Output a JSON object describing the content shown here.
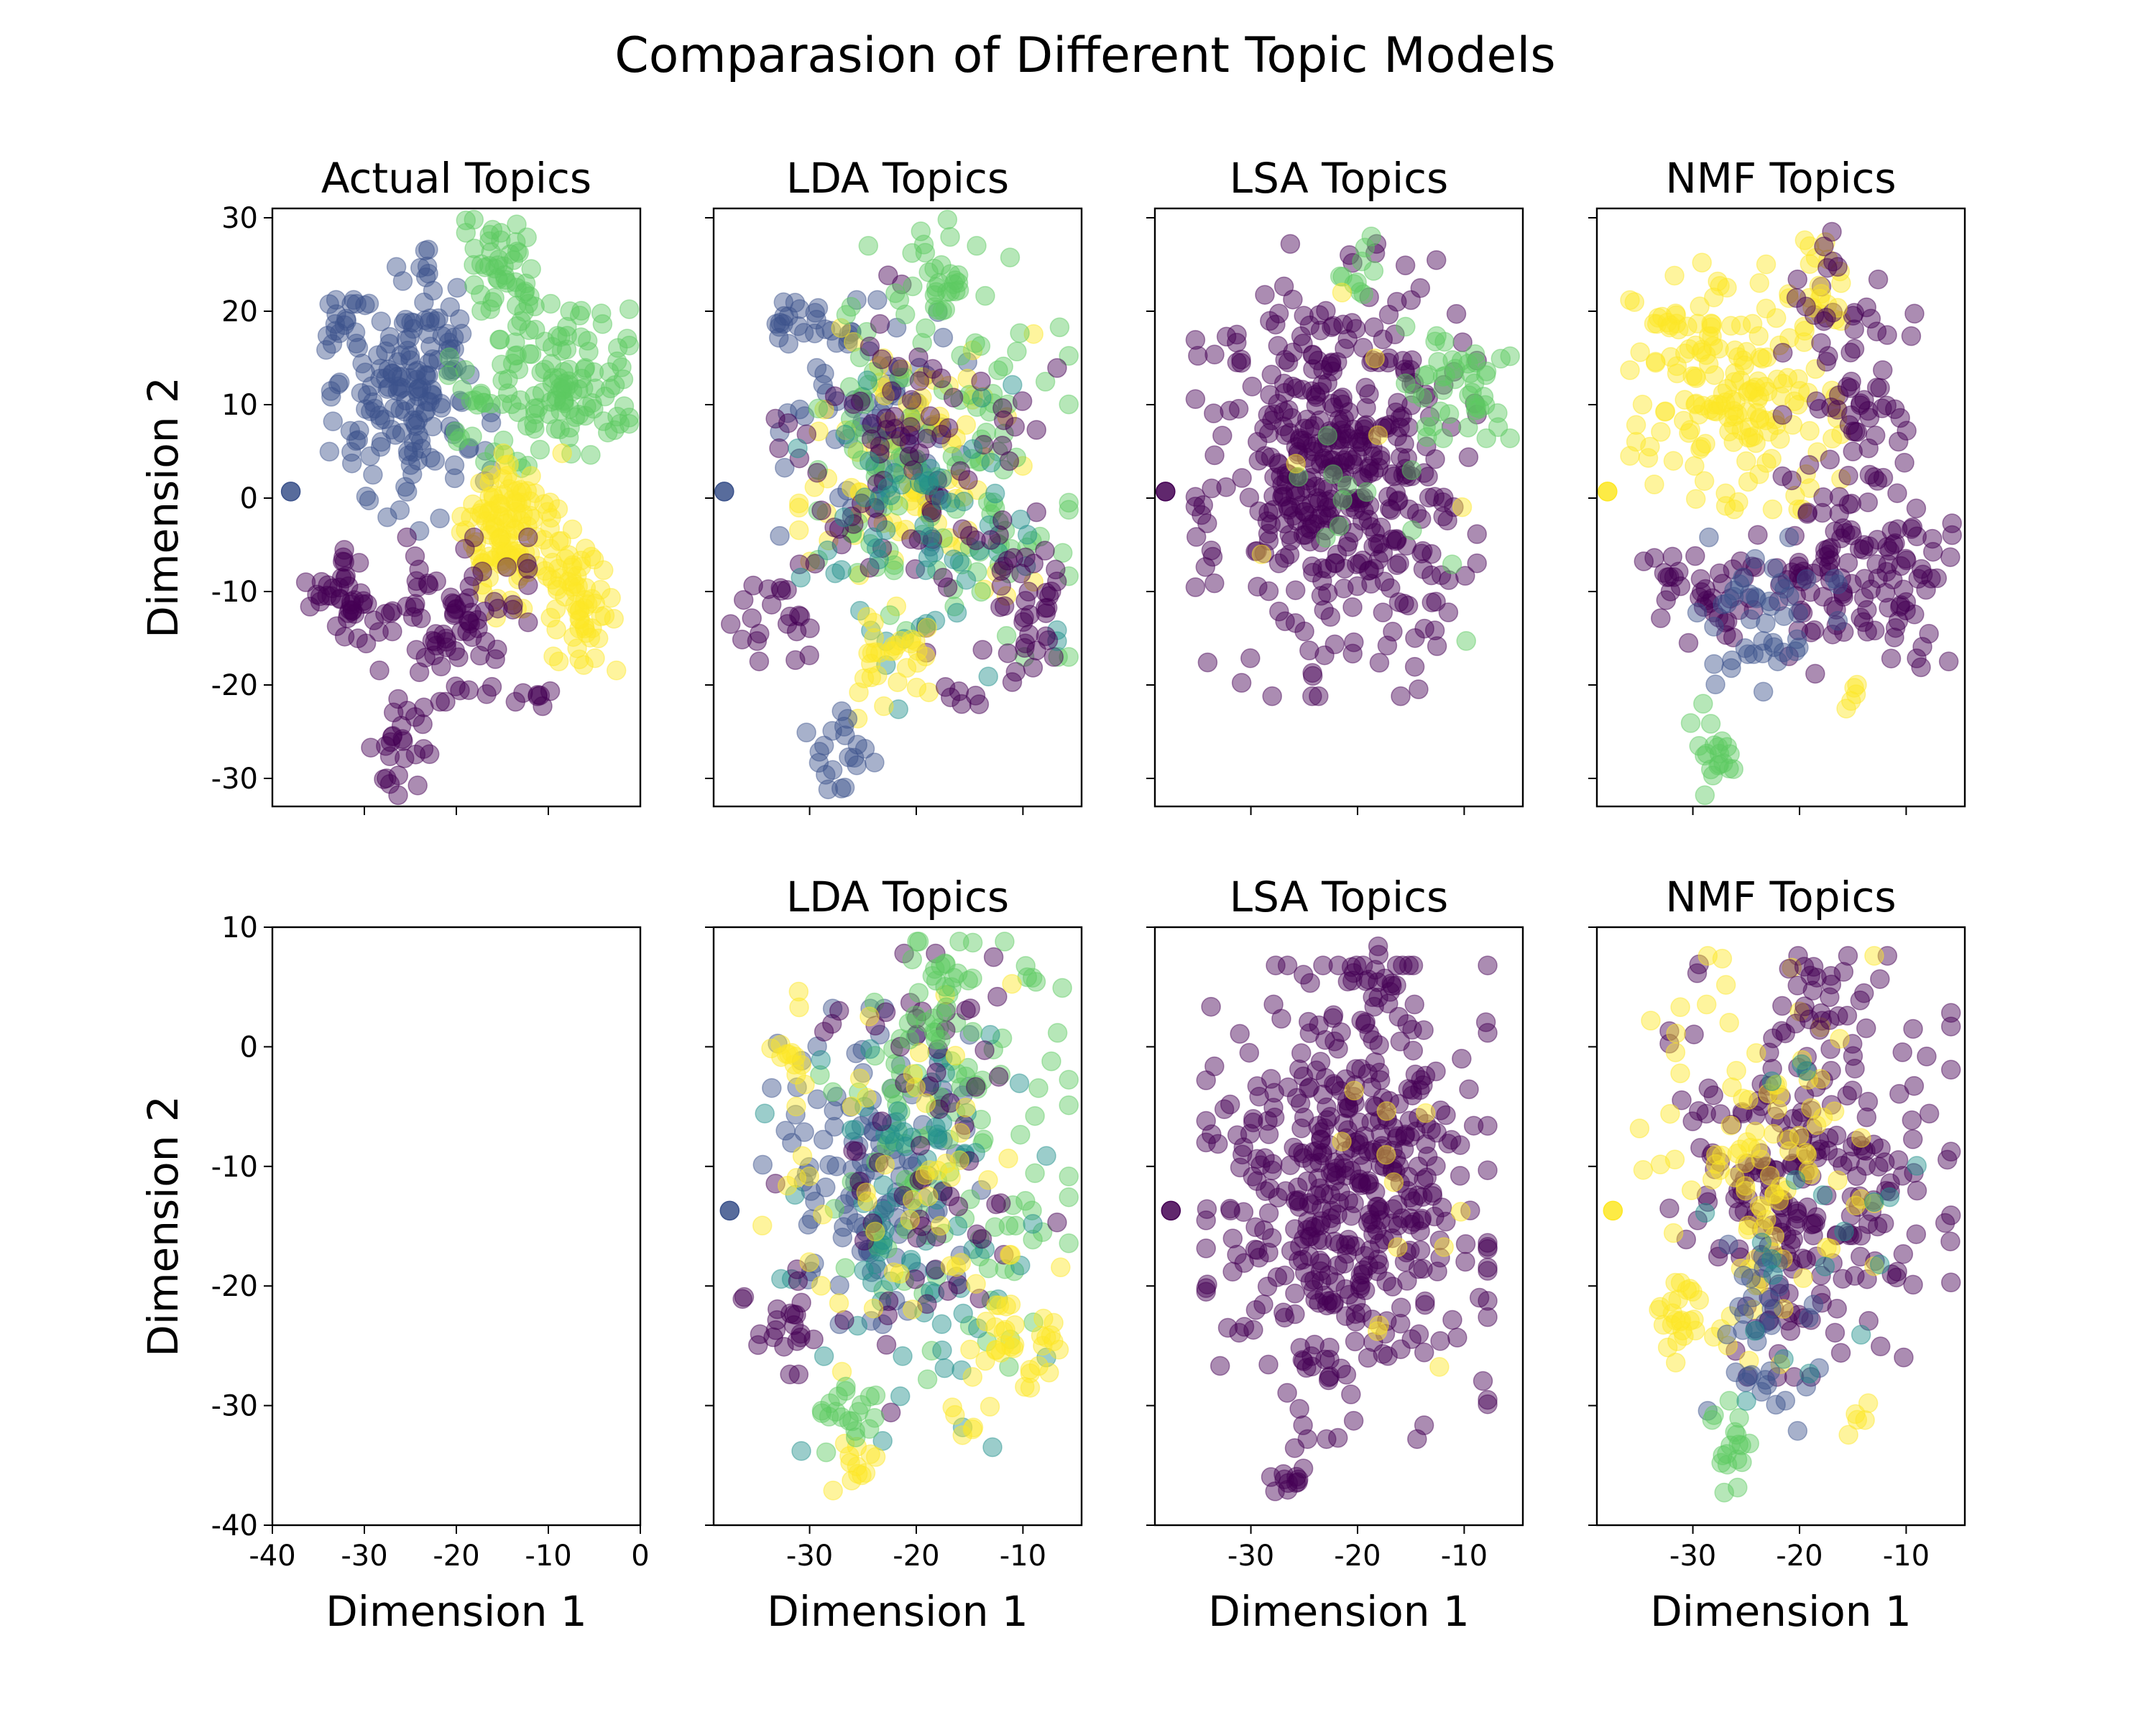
{
  "figure": {
    "title": "Comparasion of Different Topic Models"
  },
  "colors": {
    "topic0": "#440154",
    "topic1": "#3b528b",
    "topic2": "#21918c",
    "topic3": "#5ec962",
    "topic4": "#fde725"
  },
  "chart_data": [
    {
      "id": "p00",
      "type": "scatter",
      "title": "Actual Topics",
      "xlabel": "",
      "ylabel": "Dimension 2",
      "xlim": [
        -40,
        0
      ],
      "ylim": [
        -33,
        31
      ],
      "xticks": [
        -30,
        -20,
        -10
      ],
      "xtick_labels": [
        "",
        "",
        ""
      ],
      "yticks": [
        30,
        20,
        10,
        0,
        -10,
        -20,
        -30
      ],
      "ytick_labels": [
        "30",
        "20",
        "10",
        "0",
        "-10",
        "-20",
        "-30"
      ],
      "alpha": 0.45,
      "clusters": [
        {
          "c": "topic1",
          "x": -25,
          "y": 9,
          "sx": 4,
          "sy": 6,
          "n": 140
        },
        {
          "c": "topic1",
          "x": -32,
          "y": 19,
          "sx": 1.2,
          "sy": 1.5,
          "n": 18
        },
        {
          "c": "topic1",
          "x": -23,
          "y": 20,
          "sx": 2.5,
          "sy": 3,
          "n": 25
        },
        {
          "c": "topic3",
          "x": -15,
          "y": 24,
          "sx": 1.8,
          "sy": 3,
          "n": 45
        },
        {
          "c": "topic3",
          "x": -7,
          "y": 12,
          "sx": 3,
          "sy": 4,
          "n": 80
        },
        {
          "c": "topic3",
          "x": -15,
          "y": 12,
          "sx": 4,
          "sy": 4,
          "n": 55
        },
        {
          "c": "topic4",
          "x": -14,
          "y": -4,
          "sx": 2.5,
          "sy": 4,
          "n": 120
        },
        {
          "c": "topic4",
          "x": -7,
          "y": -11,
          "sx": 2,
          "sy": 4,
          "n": 60
        },
        {
          "c": "topic0",
          "x": -32,
          "y": -10,
          "sx": 2,
          "sy": 2.5,
          "n": 40
        },
        {
          "c": "topic0",
          "x": -21,
          "y": -13,
          "sx": 4,
          "sy": 4,
          "n": 80
        },
        {
          "c": "topic0",
          "x": -26,
          "y": -27,
          "sx": 1.5,
          "sy": 2.5,
          "n": 25
        },
        {
          "c": "topic0",
          "x": -12,
          "y": -21,
          "sx": 1,
          "sy": 1,
          "n": 6
        }
      ],
      "points": [
        {
          "c": "topic1",
          "x": -38,
          "y": 0.7
        }
      ]
    },
    {
      "id": "p01",
      "type": "scatter",
      "title": "LDA Topics",
      "xlabel": "",
      "ylabel": "",
      "xlim": [
        -39,
        -4.5
      ],
      "ylim": [
        -33,
        31
      ],
      "xticks": [
        -30,
        -20,
        -10
      ],
      "xtick_labels": [
        "",
        "",
        ""
      ],
      "yticks": [
        30,
        20,
        10,
        0,
        -10,
        -20,
        -30
      ],
      "ytick_labels": [
        "",
        "",
        "",
        "",
        "",
        "",
        ""
      ],
      "alpha": 0.45,
      "clusters": [
        {
          "c": "topic1",
          "x": -24,
          "y": 8,
          "sx": 4,
          "sy": 6,
          "n": 80
        },
        {
          "c": "topic4",
          "x": -20,
          "y": 4,
          "sx": 5,
          "sy": 8,
          "n": 90
        },
        {
          "c": "topic3",
          "x": -16,
          "y": 5,
          "sx": 6,
          "sy": 10,
          "n": 120
        },
        {
          "c": "topic0",
          "x": -20,
          "y": 5,
          "sx": 6,
          "sy": 10,
          "n": 90
        },
        {
          "c": "topic2",
          "x": -20,
          "y": -5,
          "sx": 6,
          "sy": 8,
          "n": 60
        },
        {
          "c": "topic3",
          "x": -18,
          "y": 24,
          "sx": 1.8,
          "sy": 3,
          "n": 30
        },
        {
          "c": "topic1",
          "x": -32,
          "y": 19,
          "sx": 1.2,
          "sy": 1.5,
          "n": 15
        },
        {
          "c": "topic4",
          "x": -23,
          "y": -17,
          "sx": 2,
          "sy": 3,
          "n": 30
        },
        {
          "c": "topic0",
          "x": -10,
          "y": -11,
          "sx": 2,
          "sy": 4,
          "n": 35
        },
        {
          "c": "topic0",
          "x": -33,
          "y": -12,
          "sx": 2,
          "sy": 2.5,
          "n": 20
        },
        {
          "c": "topic1",
          "x": -27,
          "y": -27,
          "sx": 1.5,
          "sy": 2.5,
          "n": 20
        },
        {
          "c": "topic0",
          "x": -16,
          "y": -21,
          "sx": 1,
          "sy": 1,
          "n": 6
        }
      ],
      "points": [
        {
          "c": "topic1",
          "x": -38,
          "y": 0.7
        }
      ]
    },
    {
      "id": "p02",
      "type": "scatter",
      "title": "LSA Topics",
      "xlabel": "",
      "ylabel": "",
      "xlim": [
        -39,
        -4.5
      ],
      "ylim": [
        -33,
        31
      ],
      "xticks": [
        -30,
        -20,
        -10
      ],
      "xtick_labels": [
        "",
        "",
        ""
      ],
      "yticks": [
        30,
        20,
        10,
        0,
        -10,
        -20,
        -30
      ],
      "ytick_labels": [
        "",
        "",
        "",
        "",
        "",
        "",
        ""
      ],
      "alpha": 0.45,
      "clusters": [
        {
          "c": "topic0",
          "x": -22,
          "y": 3,
          "sx": 6,
          "sy": 11,
          "n": 430
        },
        {
          "c": "topic3",
          "x": -10,
          "y": 13,
          "sx": 2.5,
          "sy": 3,
          "n": 45
        },
        {
          "c": "topic3",
          "x": -19,
          "y": 24,
          "sx": 1.2,
          "sy": 2,
          "n": 10
        },
        {
          "c": "topic3",
          "x": -18,
          "y": -3,
          "sx": 4,
          "sy": 6,
          "n": 12
        },
        {
          "c": "topic4",
          "x": -18,
          "y": 0,
          "sx": 5,
          "sy": 10,
          "n": 6
        }
      ],
      "points": [
        {
          "c": "topic0",
          "x": -38,
          "y": 0.7
        }
      ]
    },
    {
      "id": "p03",
      "type": "scatter",
      "title": "NMF Topics",
      "xlabel": "",
      "ylabel": "",
      "xlim": [
        -39,
        -4.5
      ],
      "ylim": [
        -33,
        31
      ],
      "xticks": [
        -30,
        -20,
        -10
      ],
      "xtick_labels": [
        "",
        "",
        ""
      ],
      "yticks": [
        30,
        20,
        10,
        0,
        -10,
        -20,
        -30
      ],
      "ytick_labels": [
        "",
        "",
        "",
        "",
        "",
        "",
        ""
      ],
      "alpha": 0.45,
      "clusters": [
        {
          "c": "topic4",
          "x": -26,
          "y": 12,
          "sx": 4.5,
          "sy": 6,
          "n": 170
        },
        {
          "c": "topic4",
          "x": -32,
          "y": 19,
          "sx": 1.2,
          "sy": 1.5,
          "n": 12
        },
        {
          "c": "topic0",
          "x": -15,
          "y": 8,
          "sx": 3,
          "sy": 7,
          "n": 70
        },
        {
          "c": "topic0",
          "x": -11,
          "y": -8,
          "sx": 3,
          "sy": 5,
          "n": 60
        },
        {
          "c": "topic0",
          "x": -28,
          "y": -10,
          "sx": 3,
          "sy": 2.5,
          "n": 40
        },
        {
          "c": "topic0",
          "x": -18,
          "y": -10,
          "sx": 3,
          "sy": 4,
          "n": 50
        },
        {
          "c": "topic1",
          "x": -23,
          "y": -13,
          "sx": 3,
          "sy": 4,
          "n": 45
        },
        {
          "c": "topic3",
          "x": -28,
          "y": -27,
          "sx": 1.2,
          "sy": 2.5,
          "n": 20
        },
        {
          "c": "topic4",
          "x": -18,
          "y": 24,
          "sx": 1.5,
          "sy": 2.5,
          "n": 12
        },
        {
          "c": "topic0",
          "x": -17,
          "y": 23,
          "sx": 1.5,
          "sy": 2.5,
          "n": 10
        },
        {
          "c": "topic4",
          "x": -15,
          "y": -21,
          "sx": 1,
          "sy": 1,
          "n": 5
        }
      ],
      "points": [
        {
          "c": "topic4",
          "x": -38,
          "y": 0.7
        }
      ]
    },
    {
      "id": "p10",
      "type": "scatter",
      "title": "",
      "xlabel": "Dimension 1",
      "ylabel": "Dimension 2",
      "xlim": [
        -40,
        0
      ],
      "ylim": [
        -40,
        10
      ],
      "xticks": [
        -40,
        -30,
        -20,
        -10,
        0
      ],
      "xtick_labels": [
        "-40",
        "-30",
        "-20",
        "-10",
        "0"
      ],
      "yticks": [
        10,
        0,
        -10,
        -20,
        -30,
        -40
      ],
      "ytick_labels": [
        "10",
        "0",
        "-10",
        "-20",
        "-30",
        "-40"
      ],
      "alpha": 0.45,
      "clusters": [],
      "points": []
    },
    {
      "id": "p11",
      "type": "scatter",
      "title": "LDA Topics",
      "xlabel": "Dimension 1",
      "ylabel": "",
      "xlim": [
        -39,
        -4.5
      ],
      "ylim": [
        -40,
        10
      ],
      "xticks": [
        -30,
        -20,
        -10
      ],
      "xtick_labels": [
        "-30",
        "-20",
        "-10"
      ],
      "yticks": [
        10,
        0,
        -10,
        -20,
        -30,
        -40
      ],
      "ytick_labels": [
        "",
        "",
        "",
        "",
        "",
        ""
      ],
      "alpha": 0.45,
      "clusters": [
        {
          "c": "topic1",
          "x": -24,
          "y": -10,
          "sx": 5,
          "sy": 6,
          "n": 120
        },
        {
          "c": "topic3",
          "x": -16,
          "y": -8,
          "sx": 6,
          "sy": 9,
          "n": 110
        },
        {
          "c": "topic2",
          "x": -21,
          "y": -14,
          "sx": 6,
          "sy": 9,
          "n": 80
        },
        {
          "c": "topic0",
          "x": -20,
          "y": -12,
          "sx": 6,
          "sy": 9,
          "n": 70
        },
        {
          "c": "topic4",
          "x": -22,
          "y": -10,
          "sx": 6,
          "sy": 8,
          "n": 50
        },
        {
          "c": "topic3",
          "x": -18,
          "y": 5,
          "sx": 1.5,
          "sy": 2,
          "n": 25
        },
        {
          "c": "topic4",
          "x": -32,
          "y": 0,
          "sx": 1,
          "sy": 1.5,
          "n": 12
        },
        {
          "c": "topic4",
          "x": -10,
          "y": -24,
          "sx": 2,
          "sy": 3,
          "n": 35
        },
        {
          "c": "topic0",
          "x": -33,
          "y": -23,
          "sx": 1.5,
          "sy": 2,
          "n": 18
        },
        {
          "c": "topic4",
          "x": -26,
          "y": -35,
          "sx": 1,
          "sy": 1.5,
          "n": 12
        },
        {
          "c": "topic3",
          "x": -26,
          "y": -30,
          "sx": 2,
          "sy": 2,
          "n": 20
        },
        {
          "c": "topic4",
          "x": -15,
          "y": -31,
          "sx": 1,
          "sy": 0.8,
          "n": 6
        }
      ],
      "points": [
        {
          "c": "topic1",
          "x": -37.5,
          "y": -13.7
        }
      ]
    },
    {
      "id": "p12",
      "type": "scatter",
      "title": "LSA Topics",
      "xlabel": "Dimension 1",
      "ylabel": "",
      "xlim": [
        -39,
        -4.5
      ],
      "ylim": [
        -40,
        10
      ],
      "xticks": [
        -30,
        -20,
        -10
      ],
      "xtick_labels": [
        "-30",
        "-20",
        "-10"
      ],
      "yticks": [
        10,
        0,
        -10,
        -20,
        -30,
        -40
      ],
      "ytick_labels": [
        "",
        "",
        "",
        "",
        "",
        ""
      ],
      "alpha": 0.45,
      "clusters": [
        {
          "c": "topic0",
          "x": -21,
          "y": -13,
          "sx": 6,
          "sy": 9,
          "n": 450
        },
        {
          "c": "topic0",
          "x": -18,
          "y": 4,
          "sx": 1.5,
          "sy": 2,
          "n": 20
        },
        {
          "c": "topic0",
          "x": -26,
          "y": -35,
          "sx": 1,
          "sy": 1.5,
          "n": 12
        },
        {
          "c": "topic4",
          "x": -14,
          "y": -12,
          "sx": 4,
          "sy": 8,
          "n": 12
        }
      ],
      "points": [
        {
          "c": "topic0",
          "x": -37.5,
          "y": -13.7
        }
      ]
    },
    {
      "id": "p13",
      "type": "scatter",
      "title": "NMF Topics",
      "xlabel": "Dimension 1",
      "ylabel": "",
      "xlim": [
        -39,
        -4.5
      ],
      "ylim": [
        -40,
        10
      ],
      "xticks": [
        -30,
        -20,
        -10
      ],
      "xtick_labels": [
        "-30",
        "-20",
        "-10"
      ],
      "yticks": [
        10,
        0,
        -10,
        -20,
        -30,
        -40
      ],
      "ytick_labels": [
        "",
        "",
        "",
        "",
        "",
        ""
      ],
      "alpha": 0.45,
      "clusters": [
        {
          "c": "topic0",
          "x": -19,
          "y": -10,
          "sx": 6,
          "sy": 8,
          "n": 250
        },
        {
          "c": "topic4",
          "x": -24,
          "y": -10,
          "sx": 5,
          "sy": 8,
          "n": 100
        },
        {
          "c": "topic4",
          "x": -31,
          "y": -23,
          "sx": 1.5,
          "sy": 2,
          "n": 25
        },
        {
          "c": "topic1",
          "x": -22,
          "y": -24,
          "sx": 3,
          "sy": 4,
          "n": 35
        },
        {
          "c": "topic3",
          "x": -26,
          "y": -34,
          "sx": 1,
          "sy": 2,
          "n": 18
        },
        {
          "c": "topic2",
          "x": -20,
          "y": -15,
          "sx": 5,
          "sy": 7,
          "n": 20
        },
        {
          "c": "topic0",
          "x": -18,
          "y": 4,
          "sx": 1.5,
          "sy": 2,
          "n": 15
        },
        {
          "c": "topic4",
          "x": -15,
          "y": -31,
          "sx": 1,
          "sy": 0.8,
          "n": 5
        }
      ],
      "points": [
        {
          "c": "topic4",
          "x": -37.5,
          "y": -13.7
        }
      ]
    }
  ]
}
